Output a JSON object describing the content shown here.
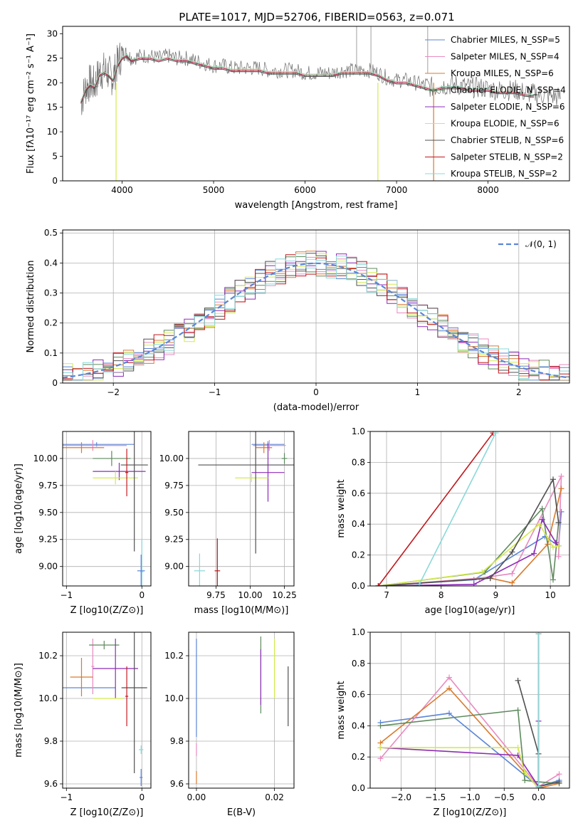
{
  "figure_title": "PLATE=1017, MJD=52706, FIBERID=0563, z=0.071",
  "series_colors": [
    "#5b86d6",
    "#e88ac0",
    "#d97a2c",
    "#5e8a5e",
    "#8e2bb8",
    "#d4ea4c",
    "#505050",
    "#c0191e",
    "#8ad8d8"
  ],
  "chart_data": [
    {
      "id": "spectrum",
      "type": "line",
      "xlabel": "wavelength [Angstrom, rest frame]",
      "ylabel": "Flux [fλ10⁻¹⁷ erg cm⁻² s⁻¹ A⁻¹]",
      "xlim": [
        3350,
        8890
      ],
      "ylim": [
        0,
        31.5
      ],
      "xticks": [
        4000,
        5000,
        6000,
        7000,
        8000
      ],
      "yticks": [
        0,
        5,
        10,
        15,
        20,
        25,
        30
      ],
      "grid": false,
      "legend_placement": "upper-right",
      "legend": [
        {
          "label": "Chabrier MILES, N_SSP=5",
          "color": "#5b86d6"
        },
        {
          "label": "Salpeter MILES, N_SSP=4",
          "color": "#e88ac0"
        },
        {
          "label": "Kroupa MILES, N_SSP=6",
          "color": "#d97a2c"
        },
        {
          "label": "Chabrier ELODIE, N_SSP=4",
          "color": "#5e8a5e"
        },
        {
          "label": "Salpeter ELODIE, N_SSP=6",
          "color": "#8e2bb8"
        },
        {
          "label": "Kroupa ELODIE, N_SSP=6",
          "color": "#d4ea4c"
        },
        {
          "label": "Chabrier STELIB, N_SSP=6",
          "color": "#505050"
        },
        {
          "label": "Salpeter STELIB, N_SSP=2",
          "color": "#c0191e"
        },
        {
          "label": "Kroupa STELIB, N_SSP=2",
          "color": "#8ad8d8"
        }
      ],
      "data_curve": {
        "x": [
          3550,
          3600,
          3650,
          3700,
          3750,
          3800,
          3850,
          3900,
          3950,
          4000,
          4050,
          4100,
          4200,
          4300,
          4400,
          4500,
          4600,
          4700,
          4800,
          4900,
          5000,
          5100,
          5200,
          5300,
          5400,
          5500,
          5600,
          5700,
          5800,
          5900,
          6000,
          6100,
          6200,
          6300,
          6400,
          6500,
          6600,
          6700,
          6800,
          6900,
          7000,
          7100,
          7200,
          7300,
          7400,
          7500,
          7600,
          7700,
          7800,
          7900,
          8000,
          8100,
          8200,
          8300,
          8400,
          8500,
          8600,
          8700,
          8800
        ],
        "y": [
          16,
          19,
          20,
          19.5,
          22,
          22.5,
          22,
          21,
          24,
          26,
          26,
          25,
          25.5,
          25.5,
          25,
          25.5,
          25,
          25,
          24.5,
          24,
          23.5,
          23.5,
          23,
          23,
          23,
          23,
          22.5,
          22.5,
          22.5,
          22.5,
          22,
          22,
          22,
          22,
          22.5,
          22.5,
          22.5,
          22.5,
          22,
          21,
          20.5,
          20.5,
          20,
          19.5,
          19,
          19.5,
          19.5,
          19.5,
          19,
          19,
          18.8,
          18.5,
          18.5,
          18.5,
          18,
          17.8,
          17.5,
          17.3,
          17
        ]
      },
      "model_curve": {
        "x": [
          3550,
          3600,
          3650,
          3700,
          3750,
          3800,
          3850,
          3900,
          3950,
          4000,
          4050,
          4100,
          4200,
          4300,
          4400,
          4500,
          4600,
          4700,
          4800,
          4900,
          5000,
          5100,
          5200,
          5300,
          5400,
          5500,
          5600,
          5700,
          5800,
          5900,
          6000,
          6100,
          6200,
          6300,
          6400,
          6500,
          6600,
          6700,
          6800,
          6900,
          7000,
          7100,
          7200,
          7300,
          7400,
          7500,
          7600,
          7700,
          7800,
          7900,
          8000,
          8100,
          8200,
          8300,
          8400,
          8500
        ],
        "y": [
          16,
          18.5,
          19.5,
          19,
          21.5,
          22,
          21.5,
          20.5,
          23.5,
          25,
          25.5,
          24.5,
          25,
          25,
          24.5,
          25,
          24.5,
          24.5,
          24,
          23.5,
          23,
          23,
          22.5,
          22.5,
          22.5,
          22.5,
          22,
          22,
          22,
          22,
          21.5,
          21.5,
          21.5,
          21.5,
          22,
          22,
          22,
          22,
          21.5,
          20.5,
          20,
          20,
          19.5,
          19,
          18.5,
          19,
          19,
          19,
          18.5,
          18.5,
          18.5,
          18,
          18,
          18,
          17.5,
          17.3
        ]
      },
      "dips": [
        {
          "x": 3934,
          "y": 0
        },
        {
          "x": 6796,
          "y": 0
        },
        {
          "x": 7405,
          "y": 0
        }
      ],
      "spikes": [
        {
          "x": 6563,
          "y": 31.5
        },
        {
          "x": 6720,
          "y": 31.5
        },
        {
          "x": 7340,
          "y": 31.5
        }
      ]
    },
    {
      "id": "residual-histogram",
      "type": "area",
      "xlabel": "(data-model)/error",
      "ylabel": "Normed distribution",
      "xlim": [
        -2.5,
        2.5
      ],
      "ylim": [
        0,
        0.51
      ],
      "xticks": [
        -2,
        -1,
        0,
        1,
        2
      ],
      "yticks": [
        0.0,
        0.1,
        0.2,
        0.3,
        0.4,
        0.5
      ],
      "grid": true,
      "legend_placement": "upper-right",
      "legend": [
        {
          "label": "𝒩(0, 1)",
          "color": "#5b86d6",
          "dashed": true
        }
      ],
      "bin_width": 0.1,
      "x_start": -2.5
    },
    {
      "id": "age-vs-Z",
      "type": "scatter",
      "xlabel": "Z [log10(Z/Z⊙)]",
      "ylabel": "age  [log10(age/yr)]",
      "xlim": [
        -1.05,
        0.12
      ],
      "ylim": [
        8.82,
        10.25
      ],
      "xticks": [
        -1,
        0
      ],
      "yticks": [
        9.0,
        9.25,
        9.5,
        9.75,
        10.0
      ],
      "grid": true,
      "points": [
        {
          "x": -0.6,
          "xerr": 0.5,
          "y": 10.13,
          "yerr": 0.02
        },
        {
          "x": -0.65,
          "xerr": 0.45,
          "y": 10.12,
          "yerr": 0.05
        },
        {
          "x": -0.8,
          "xerr": 0.3,
          "y": 10.1,
          "yerr": 0.05
        },
        {
          "x": -0.4,
          "xerr": 0.25,
          "y": 10.0,
          "yerr": 0.07
        },
        {
          "x": -0.3,
          "xerr": 0.35,
          "y": 9.88,
          "yerr": 0.08
        },
        {
          "x": -0.35,
          "xerr": 0.3,
          "y": 9.82,
          "yerr": 0.06
        },
        {
          "x": -0.1,
          "xerr": 0.18,
          "y": 9.94,
          "yerr": 0.8
        },
        {
          "x": -0.2,
          "xerr": 0.02,
          "y": 9.87,
          "yerr": 0.22
        },
        {
          "x": 0.0,
          "xerr": 0.02,
          "y": 8.95,
          "yerr": 0.3
        },
        {
          "x": -0.01,
          "xerr": 0.05,
          "y": 8.96,
          "yerr": 0.15
        }
      ]
    },
    {
      "id": "age-vs-mass",
      "type": "scatter",
      "xlabel": "mass [log10(M/M⊙)]",
      "ylabel": "",
      "xlim": [
        9.55,
        10.32
      ],
      "ylim": [
        8.82,
        10.25
      ],
      "xticks": [
        9.75,
        10.0,
        10.25
      ],
      "yticks": [
        9.0,
        9.25,
        9.5,
        9.75,
        10.0
      ],
      "grid": true,
      "points": [
        {
          "x": 10.13,
          "xerr": 0.12,
          "y": 10.13,
          "yerr": 0.03
        },
        {
          "x": 10.14,
          "xerr": 0.12,
          "y": 10.12,
          "yerr": 0.05
        },
        {
          "x": 10.1,
          "xerr": 0.06,
          "y": 10.1,
          "yerr": 0.05
        },
        {
          "x": 10.25,
          "xerr": 0.02,
          "y": 10.0,
          "yerr": 0.05
        },
        {
          "x": 10.13,
          "xerr": 0.12,
          "y": 9.87,
          "yerr": 0.27
        },
        {
          "x": 10.01,
          "xerr": 0.12,
          "y": 9.82,
          "yerr": 0.04
        },
        {
          "x": 10.04,
          "xerr": 0.42,
          "y": 9.94,
          "yerr": 0.82
        },
        {
          "x": 9.76,
          "xerr": 0.02,
          "y": 8.96,
          "yerr": 0.3
        },
        {
          "x": 9.63,
          "xerr": 0.04,
          "y": 8.96,
          "yerr": 0.16
        }
      ]
    },
    {
      "id": "weight-vs-age",
      "type": "line",
      "xlabel": "age  [log10(age/yr)]",
      "ylabel": "mass weight",
      "xlim": [
        6.7,
        10.35
      ],
      "ylim": [
        0,
        1.0
      ],
      "xticks": [
        7,
        8,
        9,
        10
      ],
      "yticks": [
        0.0,
        0.2,
        0.4,
        0.6,
        0.8,
        1.0
      ],
      "grid": true,
      "series": [
        {
          "x": [
            6.85,
            8.6,
            9.9,
            10.15,
            10.2
          ],
          "y": [
            0.0,
            0.04,
            0.32,
            0.26,
            0.48
          ]
        },
        {
          "x": [
            6.85,
            8.7,
            9.3,
            10.2,
            10.15
          ],
          "y": [
            0.0,
            0.05,
            0.08,
            0.71,
            0.19
          ]
        },
        {
          "x": [
            6.85,
            8.9,
            9.3,
            9.95,
            10.2
          ],
          "y": [
            0.0,
            0.05,
            0.02,
            0.27,
            0.63
          ]
        },
        {
          "x": [
            6.85,
            8.8,
            9.85,
            10.05,
            10.15
          ],
          "y": [
            0.0,
            0.09,
            0.5,
            0.04,
            0.41
          ]
        },
        {
          "x": [
            6.85,
            8.6,
            9.7,
            9.85,
            10.1,
            10.15
          ],
          "y": [
            0.0,
            0.01,
            0.21,
            0.43,
            0.28,
            0.26
          ]
        },
        {
          "x": [
            6.85,
            8.75,
            9.8,
            10.05,
            10.15
          ],
          "y": [
            0.0,
            0.09,
            0.4,
            0.25,
            0.26
          ]
        },
        {
          "x": [
            6.85,
            8.9,
            9.3,
            10.05,
            10.15
          ],
          "y": [
            0.0,
            0.05,
            0.22,
            0.69,
            0.41
          ]
        },
        {
          "x": [
            6.85,
            8.95
          ],
          "y": [
            0.0,
            0.99
          ]
        },
        {
          "x": [
            7.6,
            9.0
          ],
          "y": [
            0.01,
            0.99
          ]
        }
      ]
    },
    {
      "id": "mass-vs-Z",
      "type": "scatter",
      "xlabel": "Z [log10(Z/Z⊙)]",
      "ylabel": "mass [log10(M/M⊙)]",
      "xlim": [
        -1.05,
        0.12
      ],
      "ylim": [
        9.58,
        10.31
      ],
      "xticks": [
        -1,
        0
      ],
      "yticks": [
        9.6,
        9.8,
        10.0,
        10.2
      ],
      "grid": true,
      "points": [
        {
          "x": -0.7,
          "xerr": 0.35,
          "y": 10.05,
          "yerr": 0.0
        },
        {
          "x": -0.65,
          "xerr": 0.02,
          "y": 10.15,
          "yerr": 0.13
        },
        {
          "x": -0.8,
          "xerr": 0.15,
          "y": 10.1,
          "yerr": 0.09
        },
        {
          "x": -0.5,
          "xerr": 0.2,
          "y": 10.25,
          "yerr": 0.02
        },
        {
          "x": -0.35,
          "xerr": 0.3,
          "y": 10.14,
          "yerr": 0.14
        },
        {
          "x": -0.45,
          "xerr": 0.2,
          "y": 10.0,
          "yerr": 0.0
        },
        {
          "x": -0.1,
          "xerr": 0.17,
          "y": 10.05,
          "yerr": 0.4
        },
        {
          "x": -0.2,
          "xerr": 0.02,
          "y": 10.01,
          "yerr": 0.14
        },
        {
          "x": -0.01,
          "xerr": 0.03,
          "y": 9.76,
          "yerr": 0.02
        },
        {
          "x": -0.01,
          "xerr": 0.02,
          "y": 9.63,
          "yerr": 0.04
        }
      ]
    },
    {
      "id": "mass-vs-EBV",
      "type": "scatter",
      "xlabel": "E(B-V)",
      "ylabel": "",
      "xlim": [
        -0.002,
        0.025
      ],
      "ylim": [
        9.58,
        10.31
      ],
      "xticks": [
        0.0,
        0.02
      ],
      "yticks": [
        9.6,
        9.8,
        10.0,
        10.2
      ],
      "grid": true,
      "points": [
        {
          "x": 0.0,
          "xerr": 0.0,
          "y": 10.05,
          "yerr": 0.23
        },
        {
          "x": 0.0,
          "xerr": 0.0,
          "y": 9.76,
          "yerr": 0.03
        },
        {
          "x": 0.0,
          "xerr": 0.0,
          "y": 9.63,
          "yerr": 0.03
        },
        {
          "x": 0.0165,
          "xerr": 0.0,
          "y": 10.11,
          "yerr": 0.18
        },
        {
          "x": 0.0165,
          "xerr": 0.0,
          "y": 10.1,
          "yerr": 0.13
        },
        {
          "x": 0.02,
          "xerr": 0.0,
          "y": 10.14,
          "yerr": 0.14
        },
        {
          "x": 0.0235,
          "xerr": 0.0,
          "y": 10.01,
          "yerr": 0.14
        }
      ]
    },
    {
      "id": "weight-vs-Z",
      "type": "line",
      "xlabel": "Z [log10(Z/Z⊙)]",
      "ylabel": "mass weight",
      "xlim": [
        -2.45,
        0.45
      ],
      "ylim": [
        0,
        1.0
      ],
      "xticks": [
        -2.0,
        -1.5,
        -1.0,
        -0.5,
        0.0
      ],
      "yticks": [
        0.0,
        0.2,
        0.4,
        0.6,
        0.8,
        1.0
      ],
      "grid": true,
      "series": [
        {
          "x": [
            -2.3,
            -1.3,
            0.0,
            0.3
          ],
          "y": [
            0.42,
            0.48,
            0.01,
            0.05
          ]
        },
        {
          "x": [
            -2.3,
            -1.3,
            0.0,
            0.3
          ],
          "y": [
            0.19,
            0.71,
            0.01,
            0.09
          ]
        },
        {
          "x": [
            -2.3,
            -1.3,
            0.0,
            0.3
          ],
          "y": [
            0.29,
            0.64,
            0.0,
            0.03
          ]
        },
        {
          "x": [
            -2.3,
            -0.3,
            -0.2,
            0.0,
            0.3
          ],
          "y": [
            0.4,
            0.5,
            0.05,
            0.04,
            0.03
          ]
        },
        {
          "x": [
            -2.3,
            -0.3,
            0.0,
            0.0
          ],
          "y": [
            0.26,
            0.21,
            0.01,
            0.43
          ]
        },
        {
          "x": [
            -2.3,
            -0.3,
            -0.2,
            0.0
          ],
          "y": [
            0.26,
            0.26,
            0.1,
            0.0
          ]
        },
        {
          "x": [
            -0.3,
            0.0,
            0.0,
            0.3
          ],
          "y": [
            0.69,
            0.22,
            0.01,
            0.04
          ]
        },
        {
          "x": [
            0.0,
            0.0
          ],
          "y": [
            0.0,
            0.99
          ]
        },
        {
          "x": [
            0.0,
            0.0
          ],
          "y": [
            0.01,
            0.99
          ]
        }
      ]
    }
  ]
}
